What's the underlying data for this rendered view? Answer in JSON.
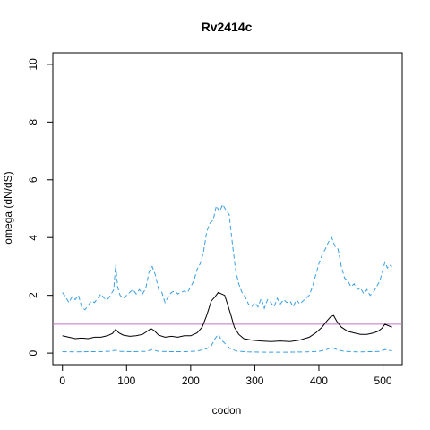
{
  "chart_data": {
    "type": "line",
    "title": "Rv2414c",
    "xlabel": "codon",
    "ylabel": "omega (dN/dS)",
    "xlim": [
      -15,
      530
    ],
    "ylim": [
      -0.4,
      10.4
    ],
    "x_ticks": [
      0,
      100,
      200,
      300,
      400,
      500
    ],
    "y_ticks": [
      0,
      2,
      4,
      6,
      8,
      10
    ],
    "reference_line": {
      "y": 1,
      "color": "#c471c4"
    },
    "grid": false,
    "legend": "none",
    "series": [
      {
        "role": "upper",
        "color": "#3a9fe0",
        "dash": "dashed",
        "points": [
          [
            0,
            2.1
          ],
          [
            5,
            1.95
          ],
          [
            10,
            1.75
          ],
          [
            15,
            1.95
          ],
          [
            20,
            1.85
          ],
          [
            25,
            2.0
          ],
          [
            30,
            1.6
          ],
          [
            35,
            1.5
          ],
          [
            40,
            1.65
          ],
          [
            45,
            1.8
          ],
          [
            50,
            1.75
          ],
          [
            55,
            1.9
          ],
          [
            60,
            2.05
          ],
          [
            65,
            1.9
          ],
          [
            70,
            1.85
          ],
          [
            75,
            2.0
          ],
          [
            80,
            2.2
          ],
          [
            83,
            3.05
          ],
          [
            86,
            2.3
          ],
          [
            90,
            2.0
          ],
          [
            95,
            1.9
          ],
          [
            100,
            2.0
          ],
          [
            105,
            2.1
          ],
          [
            110,
            2.2
          ],
          [
            115,
            2.05
          ],
          [
            120,
            2.2
          ],
          [
            125,
            2.05
          ],
          [
            130,
            2.25
          ],
          [
            135,
            2.8
          ],
          [
            140,
            3.0
          ],
          [
            145,
            2.7
          ],
          [
            150,
            2.2
          ],
          [
            155,
            2.1
          ],
          [
            160,
            1.75
          ],
          [
            165,
            1.95
          ],
          [
            170,
            2.1
          ],
          [
            175,
            2.15
          ],
          [
            180,
            2.05
          ],
          [
            185,
            2.1
          ],
          [
            190,
            2.15
          ],
          [
            195,
            2.1
          ],
          [
            200,
            2.3
          ],
          [
            205,
            2.5
          ],
          [
            210,
            2.9
          ],
          [
            215,
            3.1
          ],
          [
            220,
            3.5
          ],
          [
            225,
            4.2
          ],
          [
            230,
            4.5
          ],
          [
            235,
            4.6
          ],
          [
            240,
            5.1
          ],
          [
            245,
            4.9
          ],
          [
            250,
            5.15
          ],
          [
            255,
            4.95
          ],
          [
            260,
            4.8
          ],
          [
            265,
            3.8
          ],
          [
            270,
            2.9
          ],
          [
            275,
            2.4
          ],
          [
            280,
            2.1
          ],
          [
            285,
            1.95
          ],
          [
            290,
            1.7
          ],
          [
            295,
            1.6
          ],
          [
            300,
            1.75
          ],
          [
            305,
            1.6
          ],
          [
            310,
            1.9
          ],
          [
            315,
            1.55
          ],
          [
            320,
            1.85
          ],
          [
            325,
            1.75
          ],
          [
            330,
            1.6
          ],
          [
            335,
            1.9
          ],
          [
            340,
            1.7
          ],
          [
            345,
            1.85
          ],
          [
            350,
            1.75
          ],
          [
            355,
            1.8
          ],
          [
            360,
            1.6
          ],
          [
            365,
            1.85
          ],
          [
            370,
            1.7
          ],
          [
            375,
            1.8
          ],
          [
            380,
            1.9
          ],
          [
            385,
            2.0
          ],
          [
            390,
            2.3
          ],
          [
            395,
            2.7
          ],
          [
            400,
            3.1
          ],
          [
            405,
            3.4
          ],
          [
            410,
            3.6
          ],
          [
            415,
            3.85
          ],
          [
            420,
            4.0
          ],
          [
            425,
            3.7
          ],
          [
            430,
            3.6
          ],
          [
            435,
            3.0
          ],
          [
            440,
            2.6
          ],
          [
            445,
            2.5
          ],
          [
            450,
            2.3
          ],
          [
            455,
            2.4
          ],
          [
            460,
            2.2
          ],
          [
            465,
            2.25
          ],
          [
            470,
            2.05
          ],
          [
            475,
            2.2
          ],
          [
            480,
            2.0
          ],
          [
            485,
            2.1
          ],
          [
            490,
            2.3
          ],
          [
            495,
            2.5
          ],
          [
            500,
            2.9
          ],
          [
            503,
            3.15
          ],
          [
            507,
            2.95
          ],
          [
            510,
            3.05
          ],
          [
            514,
            3.0
          ]
        ]
      },
      {
        "role": "estimate",
        "color": "#000000",
        "dash": "solid",
        "points": [
          [
            0,
            0.6
          ],
          [
            10,
            0.55
          ],
          [
            20,
            0.5
          ],
          [
            30,
            0.52
          ],
          [
            40,
            0.5
          ],
          [
            50,
            0.55
          ],
          [
            60,
            0.55
          ],
          [
            70,
            0.6
          ],
          [
            78,
            0.68
          ],
          [
            83,
            0.82
          ],
          [
            88,
            0.7
          ],
          [
            95,
            0.62
          ],
          [
            105,
            0.58
          ],
          [
            115,
            0.6
          ],
          [
            125,
            0.65
          ],
          [
            132,
            0.75
          ],
          [
            138,
            0.85
          ],
          [
            143,
            0.78
          ],
          [
            150,
            0.62
          ],
          [
            160,
            0.55
          ],
          [
            170,
            0.58
          ],
          [
            180,
            0.55
          ],
          [
            190,
            0.6
          ],
          [
            200,
            0.6
          ],
          [
            210,
            0.7
          ],
          [
            218,
            0.9
          ],
          [
            225,
            1.3
          ],
          [
            232,
            1.8
          ],
          [
            238,
            1.95
          ],
          [
            243,
            2.1
          ],
          [
            248,
            2.05
          ],
          [
            253,
            2.0
          ],
          [
            258,
            1.65
          ],
          [
            263,
            1.3
          ],
          [
            268,
            0.9
          ],
          [
            275,
            0.65
          ],
          [
            283,
            0.5
          ],
          [
            295,
            0.45
          ],
          [
            310,
            0.42
          ],
          [
            325,
            0.4
          ],
          [
            340,
            0.42
          ],
          [
            355,
            0.4
          ],
          [
            370,
            0.45
          ],
          [
            385,
            0.55
          ],
          [
            395,
            0.7
          ],
          [
            405,
            0.9
          ],
          [
            412,
            1.1
          ],
          [
            418,
            1.25
          ],
          [
            423,
            1.3
          ],
          [
            428,
            1.1
          ],
          [
            435,
            0.9
          ],
          [
            445,
            0.75
          ],
          [
            455,
            0.7
          ],
          [
            465,
            0.65
          ],
          [
            475,
            0.65
          ],
          [
            485,
            0.7
          ],
          [
            492,
            0.75
          ],
          [
            498,
            0.85
          ],
          [
            503,
            1.0
          ],
          [
            508,
            0.95
          ],
          [
            514,
            0.9
          ]
        ]
      },
      {
        "role": "lower",
        "color": "#3a9fe0",
        "dash": "dashed",
        "points": [
          [
            0,
            0.05
          ],
          [
            20,
            0.04
          ],
          [
            40,
            0.05
          ],
          [
            60,
            0.05
          ],
          [
            75,
            0.07
          ],
          [
            83,
            0.1
          ],
          [
            90,
            0.06
          ],
          [
            110,
            0.05
          ],
          [
            130,
            0.06
          ],
          [
            140,
            0.12
          ],
          [
            150,
            0.06
          ],
          [
            170,
            0.05
          ],
          [
            190,
            0.05
          ],
          [
            210,
            0.07
          ],
          [
            225,
            0.15
          ],
          [
            232,
            0.25
          ],
          [
            238,
            0.5
          ],
          [
            243,
            0.65
          ],
          [
            248,
            0.45
          ],
          [
            255,
            0.3
          ],
          [
            262,
            0.15
          ],
          [
            272,
            0.07
          ],
          [
            290,
            0.04
          ],
          [
            320,
            0.03
          ],
          [
            350,
            0.03
          ],
          [
            380,
            0.04
          ],
          [
            400,
            0.06
          ],
          [
            412,
            0.12
          ],
          [
            420,
            0.2
          ],
          [
            428,
            0.12
          ],
          [
            440,
            0.06
          ],
          [
            460,
            0.04
          ],
          [
            480,
            0.05
          ],
          [
            495,
            0.06
          ],
          [
            503,
            0.12
          ],
          [
            508,
            0.1
          ],
          [
            514,
            0.08
          ]
        ]
      }
    ]
  }
}
